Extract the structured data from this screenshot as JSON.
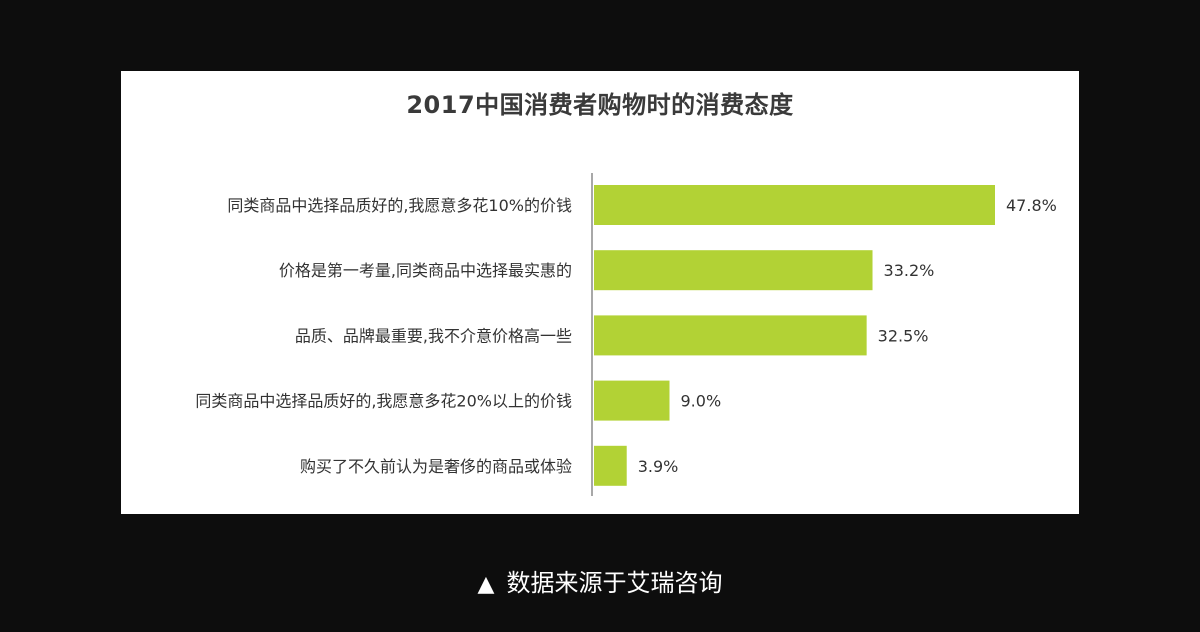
{
  "chart_data": {
    "type": "bar",
    "orientation": "horizontal",
    "title": "2017中国消费者购物时的消费态度",
    "categories": [
      "同类商品中选择品质好的,我愿意多花10%的价钱",
      "价格是第一考量,同类商品中选择最实惠的",
      "品质、品牌最重要,我不介意价格高一些",
      "同类商品中选择品质好的,我愿意多花20%以上的价钱",
      "购买了不久前认为是奢侈的商品或体验"
    ],
    "values": [
      47.8,
      33.2,
      32.5,
      9.0,
      3.9
    ],
    "value_labels": [
      "47.8%",
      "33.2%",
      "32.5%",
      "9.0%",
      "3.9%"
    ],
    "xlim": [
      0,
      50
    ],
    "bar_color": "#b2d235",
    "grid": false
  },
  "caption": {
    "icon": "triangle-up-icon",
    "text": "数据来源于艾瑞咨询"
  },
  "colors": {
    "background": "#0d0d0d",
    "panel": "#ffffff",
    "bar": "#b2d235"
  }
}
